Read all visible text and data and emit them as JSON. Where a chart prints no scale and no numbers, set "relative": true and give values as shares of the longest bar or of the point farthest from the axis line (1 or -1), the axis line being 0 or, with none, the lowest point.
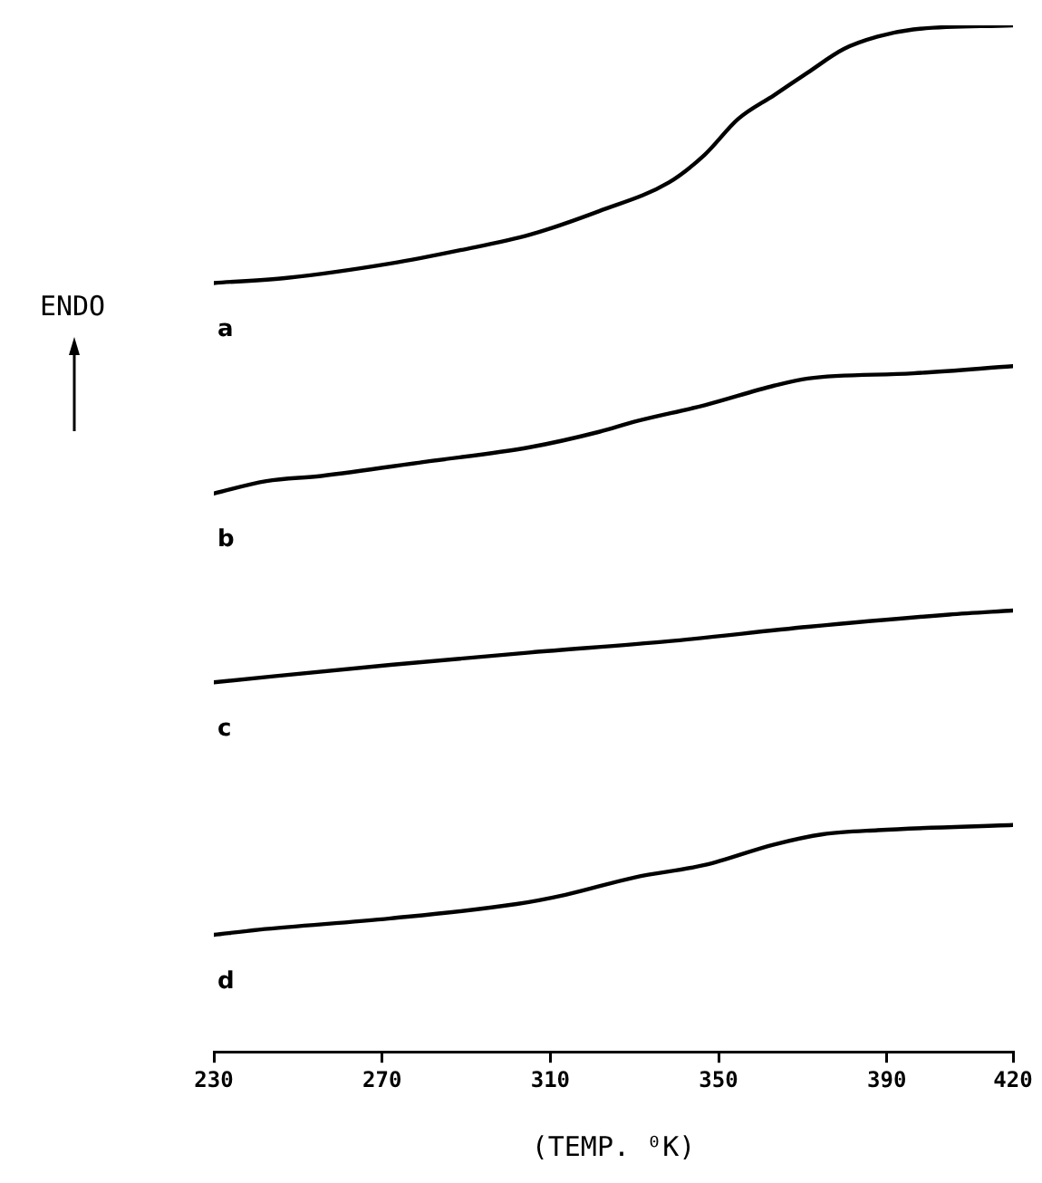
{
  "chart_data": {
    "type": "line",
    "xlabel": "(TEMP. ⁰K)",
    "relative": true,
    "xlim": [
      230,
      420
    ],
    "xticks": [
      230,
      270,
      310,
      350,
      390,
      420
    ],
    "annotations": [
      "ENDO"
    ],
    "legend": false,
    "grid": false,
    "marker": "none",
    "line_style": "solid",
    "series": [
      {
        "name": "a",
        "color": "#000000",
        "x": [
          230,
          247.4,
          272,
          288.6,
          305.1,
          321.6,
          338.2,
          346.7,
          354.7,
          363.2,
          371.2,
          379.8,
          387.8,
          396.3,
          420
        ],
        "values": [
          0.749,
          0.754,
          0.768,
          0.781,
          0.796,
          0.819,
          0.847,
          0.874,
          0.909,
          0.932,
          0.954,
          0.977,
          0.989,
          0.996,
          1
        ]
      },
      {
        "name": "b",
        "color": "#000000",
        "x": [
          230,
          242.5,
          255.5,
          280.5,
          305.1,
          321.6,
          330.1,
          346.7,
          363.2,
          371.2,
          396.3,
          420
        ],
        "values": [
          0.544,
          0.556,
          0.561,
          0.575,
          0.589,
          0.604,
          0.614,
          0.63,
          0.649,
          0.656,
          0.661,
          0.668
        ]
      },
      {
        "name": "c",
        "color": "#000000",
        "x": [
          230,
          272,
          305.1,
          338.2,
          371.2,
          404.8,
          420
        ],
        "values": [
          0.36,
          0.377,
          0.389,
          0.4,
          0.414,
          0.426,
          0.43
        ]
      },
      {
        "name": "d",
        "color": "#000000",
        "x": [
          230,
          240.7,
          272,
          302,
          313.6,
          330.1,
          346.7,
          363.2,
          374.8,
          387.8,
          420
        ],
        "values": [
          0.114,
          0.119,
          0.13,
          0.144,
          0.153,
          0.17,
          0.182,
          0.202,
          0.212,
          0.216,
          0.221
        ]
      }
    ]
  }
}
